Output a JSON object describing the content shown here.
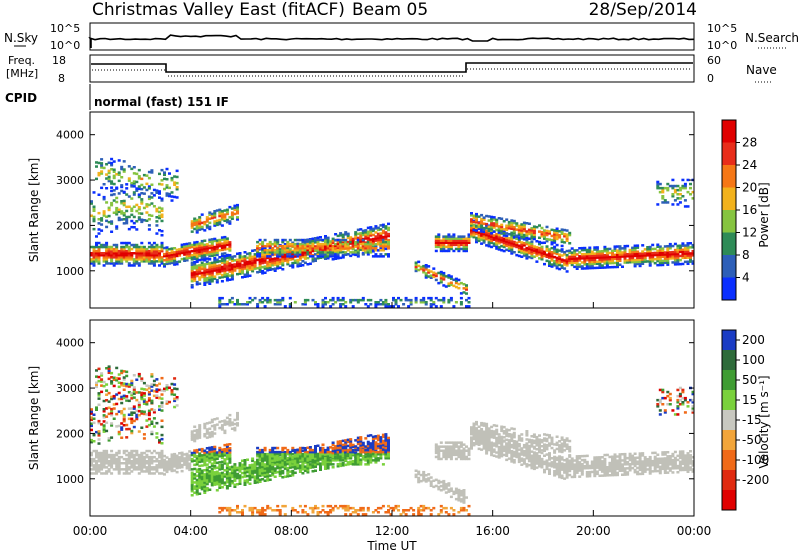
{
  "header": {
    "station": "Christmas Valley East (fitACF)",
    "beam": "Beam 05",
    "date": "28/Sep/2014"
  },
  "strip_nsky": {
    "left_label": "N.Sky",
    "left_ticks": [
      "10^5",
      "10^0"
    ],
    "right_label": "N.Search",
    "right_ticks": [
      "10^5",
      "10^0"
    ]
  },
  "strip_freq": {
    "left_label_1": "Freq.",
    "left_label_2": "[MHz]",
    "left_ticks": [
      "18",
      "8"
    ],
    "right_label": "Nave",
    "right_ticks": [
      "60",
      "0"
    ]
  },
  "cpid": {
    "label": "CPID",
    "value": "normal (fast) 151 IF"
  },
  "chart_data": [
    {
      "type": "heatmap",
      "quantity": "Power",
      "ylabel": "Slant Range [km]",
      "xlabel": "Time UT",
      "xlim": [
        0,
        24
      ],
      "ylim": [
        180,
        4500
      ],
      "x_tick_labels": [
        "00:00",
        "04:00",
        "08:00",
        "12:00",
        "16:00",
        "20:00",
        "00:00"
      ],
      "y_tick_labels": [
        "1000",
        "2000",
        "3000",
        "4000"
      ],
      "colorbar_label": "Power [dB]",
      "colorbar_ticks": [
        "4",
        "8",
        "12",
        "16",
        "20",
        "24",
        "28"
      ],
      "colorbar_colors": [
        "#0a2fff",
        "#2d5fb8",
        "#2e8b57",
        "#86c440",
        "#f2b21c",
        "#f57716",
        "#e82d1a",
        "#e00000"
      ]
    },
    {
      "type": "heatmap",
      "quantity": "Velocity",
      "ylabel": "Slant Range [km]",
      "xlabel": "Time UT",
      "xlim": [
        0,
        24
      ],
      "ylim": [
        180,
        4500
      ],
      "x_tick_labels": [
        "00:00",
        "04:00",
        "08:00",
        "12:00",
        "16:00",
        "20:00",
        "00:00"
      ],
      "y_tick_labels": [
        "1000",
        "2000",
        "3000",
        "4000"
      ],
      "colorbar_label": "Velocity [m s⁻¹]",
      "colorbar_ticks": [
        "200",
        "100",
        "50",
        "15",
        "-15",
        "-50",
        "-100",
        "-200"
      ],
      "colorbar_colors": [
        "#1a3cc4",
        "#2e6b3a",
        "#3f9c33",
        "#7ad13c",
        "#c8c8c0",
        "#f2a53a",
        "#f06a18",
        "#e02a10",
        "#e00000"
      ],
      "ground_scatter_color": "#c0c0b8"
    }
  ]
}
